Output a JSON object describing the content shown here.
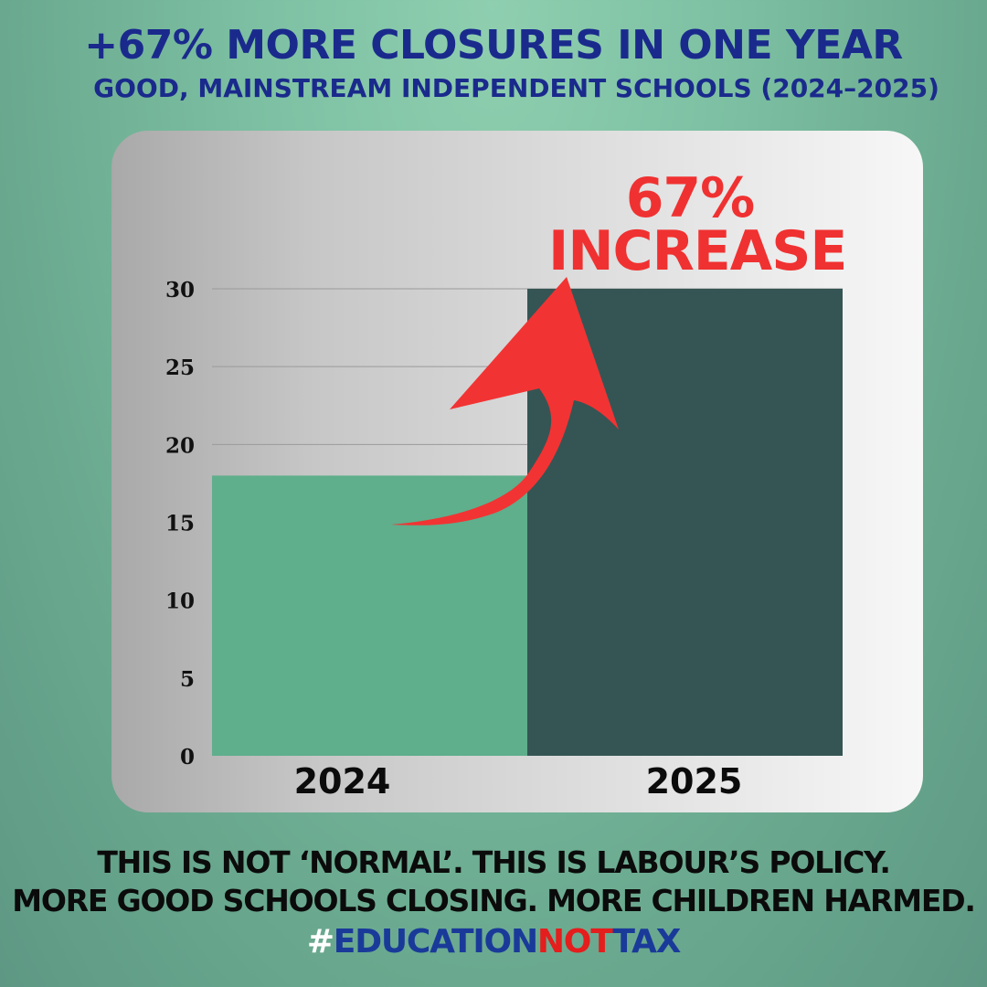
{
  "header": {
    "title": "+67% MORE CLOSURES IN ONE YEAR",
    "subtitle": "GOOD, MAINSTREAM INDEPENDENT SCHOOLS (2024–2025)"
  },
  "callout": {
    "line1": "67%",
    "line2": "INCREASE",
    "color": "#f03131"
  },
  "chart_data": {
    "type": "bar",
    "categories": [
      "2024",
      "2025"
    ],
    "values": [
      18,
      30
    ],
    "colors": [
      "#5fae8c",
      "#345554"
    ],
    "yticks": [
      0,
      5,
      10,
      15,
      20,
      25,
      30
    ],
    "ylim": [
      0,
      30
    ],
    "grid": true,
    "annotation": "arrow from 2024 bar to top of 2025 bar"
  },
  "footer": {
    "line1": "THIS IS NOT ‘NORMAL’.  THIS IS LABOUR’S POLICY.",
    "line2": "MORE GOOD SCHOOLS CLOSING. MORE CHILDREN HARMED.",
    "hashtag": {
      "mark": "#",
      "part1": "EDUCATION",
      "part2": "NOT",
      "part3": "TAX"
    }
  }
}
